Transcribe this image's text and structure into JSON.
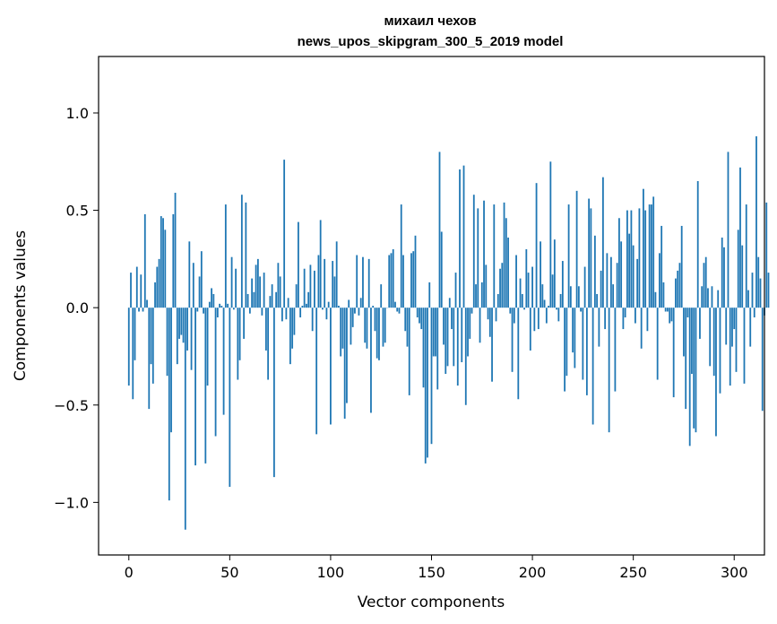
{
  "chart_data": {
    "type": "bar",
    "title_line1": "михаил чехов",
    "title_line2": "news_upos_skipgram_300_5_2019 model",
    "xlabel": "Vector components",
    "ylabel": "Components values",
    "xlim": [
      -15,
      315
    ],
    "ylim": [
      -1.27,
      1.29
    ],
    "xticks": [
      0,
      50,
      100,
      150,
      200,
      250,
      300
    ],
    "xtick_labels": [
      "0",
      "50",
      "100",
      "150",
      "200",
      "250",
      "300"
    ],
    "yticks": [
      -1.0,
      -0.5,
      0.0,
      0.5,
      1.0
    ],
    "ytick_labels": [
      "−1.0",
      "−0.5",
      "0.0",
      "0.5",
      "1.0"
    ],
    "bar_color": "#1f77b4",
    "grid": false,
    "values": [
      -0.4,
      0.18,
      -0.47,
      -0.27,
      0.21,
      -0.02,
      0.17,
      -0.02,
      0.48,
      0.04,
      -0.52,
      -0.29,
      -0.39,
      0.13,
      0.21,
      0.25,
      0.47,
      0.46,
      0.4,
      -0.35,
      -0.99,
      -0.64,
      0.48,
      0.59,
      -0.29,
      -0.16,
      -0.14,
      -0.18,
      -1.14,
      -0.22,
      0.34,
      -0.32,
      0.23,
      -0.81,
      -0.02,
      0.16,
      0.29,
      -0.03,
      -0.8,
      -0.4,
      0.03,
      0.1,
      0.07,
      -0.66,
      -0.05,
      0.02,
      0.01,
      -0.55,
      0.53,
      0.02,
      -0.92,
      0.26,
      -0.01,
      0.2,
      -0.37,
      -0.27,
      0.58,
      -0.16,
      0.54,
      0.07,
      -0.03,
      0.15,
      0.08,
      0.22,
      0.25,
      0.16,
      -0.04,
      0.18,
      -0.22,
      -0.37,
      0.06,
      0.12,
      -0.87,
      0.08,
      0.23,
      0.16,
      -0.07,
      0.76,
      -0.06,
      0.05,
      -0.29,
      -0.21,
      -0.14,
      0.12,
      0.44,
      -0.05,
      0.01,
      0.2,
      0.02,
      0.08,
      0.22,
      -0.12,
      0.19,
      -0.65,
      0.27,
      0.45,
      -0.01,
      0.25,
      -0.06,
      0.03,
      -0.6,
      0.24,
      0.16,
      0.34,
      0.01,
      -0.25,
      -0.21,
      -0.57,
      -0.49,
      0.04,
      -0.19,
      -0.1,
      -0.03,
      0.27,
      -0.04,
      0.05,
      0.26,
      -0.18,
      -0.21,
      0.25,
      -0.54,
      0.01,
      -0.12,
      -0.26,
      -0.27,
      0.12,
      -0.2,
      -0.18,
      0.0,
      0.27,
      0.28,
      0.3,
      0.03,
      -0.02,
      -0.03,
      0.53,
      0.27,
      -0.12,
      -0.2,
      -0.45,
      0.28,
      0.29,
      0.37,
      -0.05,
      -0.08,
      -0.11,
      -0.41,
      -0.8,
      -0.77,
      0.13,
      -0.7,
      -0.25,
      -0.25,
      -0.42,
      0.8,
      0.39,
      -0.19,
      -0.34,
      -0.3,
      0.05,
      -0.11,
      -0.3,
      0.18,
      -0.4,
      0.71,
      -0.28,
      0.73,
      -0.5,
      -0.25,
      -0.16,
      -0.03,
      0.58,
      0.12,
      0.51,
      -0.18,
      0.13,
      0.55,
      0.22,
      -0.06,
      -0.15,
      -0.38,
      0.53,
      -0.07,
      0.07,
      0.2,
      0.23,
      0.54,
      0.46,
      0.36,
      -0.03,
      -0.33,
      -0.08,
      0.27,
      -0.47,
      0.15,
      0.07,
      -0.01,
      0.3,
      0.18,
      -0.22,
      0.21,
      -0.12,
      0.64,
      -0.11,
      0.34,
      0.12,
      0.04,
      -0.08,
      0.01,
      0.75,
      0.17,
      0.35,
      -0.01,
      -0.07,
      0.07,
      0.24,
      -0.43,
      -0.35,
      0.53,
      0.11,
      -0.23,
      -0.31,
      0.6,
      0.11,
      -0.02,
      -0.37,
      0.21,
      -0.45,
      0.56,
      0.51,
      -0.6,
      0.37,
      0.07,
      -0.2,
      0.19,
      0.67,
      -0.11,
      0.28,
      -0.64,
      0.26,
      0.12,
      -0.43,
      0.23,
      0.46,
      0.34,
      -0.11,
      -0.05,
      0.5,
      0.38,
      0.5,
      0.32,
      -0.08,
      0.25,
      0.51,
      -0.21,
      0.61,
      0.5,
      -0.12,
      0.53,
      0.53,
      0.57,
      0.08,
      -0.37,
      0.28,
      0.42,
      0.13,
      -0.02,
      -0.02,
      -0.08,
      -0.07,
      -0.46,
      0.15,
      0.19,
      0.23,
      0.42,
      -0.25,
      -0.52,
      -0.05,
      -0.71,
      -0.34,
      -0.62,
      -0.64,
      0.65,
      -0.16,
      0.11,
      0.23,
      0.26,
      0.1,
      -0.3,
      0.11,
      -0.35,
      -0.66,
      0.09,
      -0.44,
      0.36,
      0.31,
      -0.19,
      0.8,
      -0.4,
      -0.2,
      -0.11,
      -0.33,
      0.4,
      0.72,
      0.32,
      -0.39,
      0.53,
      0.09,
      -0.2,
      0.18,
      -0.05,
      0.88,
      0.26,
      0.15,
      -0.53,
      -0.04,
      0.54,
      0.18
    ]
  }
}
